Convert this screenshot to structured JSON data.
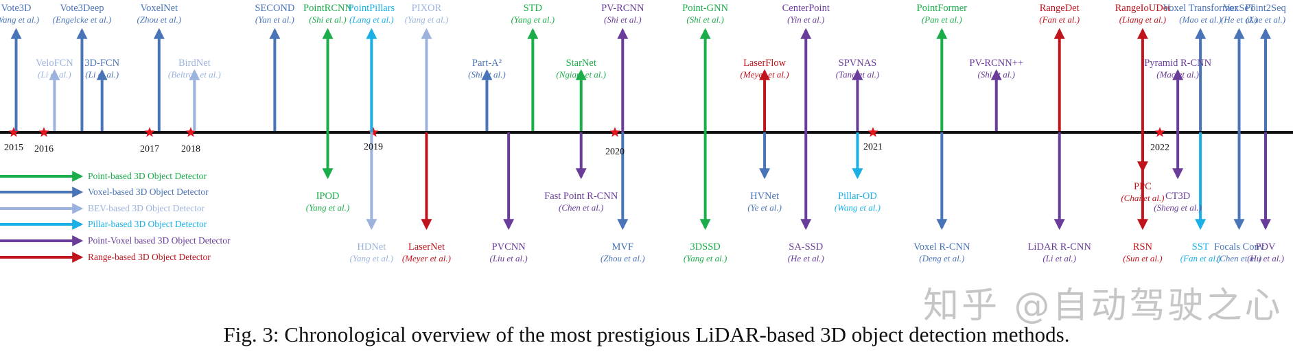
{
  "colors": {
    "point": "#1bad4a",
    "voxel": "#4a74b8",
    "bev": "#9cb4dd",
    "pillar": "#1ab0e6",
    "pointvoxel": "#6a3d9a",
    "range": "#c0151d",
    "axis": "#111111",
    "star": "#e0151d"
  },
  "caption": "Fig. 3: Chronological overview of the most prestigious LiDAR-based 3D object detection methods.",
  "watermark": "知乎 @自动驾驶之心",
  "years": [
    {
      "label": "2015",
      "t": 2015.0
    },
    {
      "label": "2016",
      "t": 2016.0
    },
    {
      "label": "2017",
      "t": 2017.0
    },
    {
      "label": "2018",
      "t": 2018.0
    },
    {
      "label": "2019",
      "t": 2019.0
    },
    {
      "label": "2020",
      "t": 2020.0
    },
    {
      "label": "2021",
      "t": 2021.0
    },
    {
      "label": "2022",
      "t": 2022.0
    }
  ],
  "legend": [
    {
      "type": "point",
      "label": "Point-based 3D Object Detector"
    },
    {
      "type": "voxel",
      "label": "Voxel-based 3D Object Detector"
    },
    {
      "type": "bev",
      "label": "BEV-based 3D Object Detector"
    },
    {
      "type": "pillar",
      "label": "Pillar-based 3D Object Detector"
    },
    {
      "type": "pointvoxel",
      "label": "Point-Voxel based 3D Object Detector"
    },
    {
      "type": "range",
      "label": "Range-based 3D Object Detector"
    }
  ],
  "methods": [
    {
      "name": "Vote3D",
      "authors": "(Wang et al.)",
      "type": "voxel",
      "t": 2015.08,
      "dir": "up",
      "tier": "high"
    },
    {
      "name": "VeloFCN",
      "authors": "(Li et al.)",
      "type": "bev",
      "t": 2016.1,
      "dir": "up",
      "tier": "low"
    },
    {
      "name": "Vote3Deep",
      "authors": "(Engelcke et al.)",
      "type": "voxel",
      "t": 2016.36,
      "dir": "up",
      "tier": "high"
    },
    {
      "name": "3D-FCN",
      "authors": "(Li et al.)",
      "type": "voxel",
      "t": 2016.55,
      "dir": "up",
      "tier": "low"
    },
    {
      "name": "VoxelNet",
      "authors": "(Zhou et al.)",
      "type": "voxel",
      "t": 2017.23,
      "dir": "up",
      "tier": "high"
    },
    {
      "name": "BirdNet",
      "authors": "(Beltran et al.)",
      "type": "bev",
      "t": 2018.02,
      "dir": "up",
      "tier": "low"
    },
    {
      "name": "SECOND",
      "authors": "(Yan et al.)",
      "type": "voxel",
      "t": 2018.46,
      "dir": "up",
      "tier": "high"
    },
    {
      "name": "PointRCNN",
      "authors": "(Shi et al.)",
      "type": "point",
      "t": 2018.75,
      "dir": "both",
      "tier": "high"
    },
    {
      "name": "IPOD",
      "authors": "(Yang et al.)",
      "type": "point",
      "t": 2018.75,
      "dir": "down",
      "tier": "high"
    },
    {
      "name": "PointPillars",
      "authors": "(Lang et al.)",
      "type": "pillar",
      "t": 2018.99,
      "dir": "both",
      "tier": "high"
    },
    {
      "name": "HDNet",
      "authors": "(Yang et al.)",
      "type": "bev",
      "t": 2018.99,
      "dir": "down",
      "tier": "low"
    },
    {
      "name": "PIXOR",
      "authors": "(Yang et al.)",
      "type": "bev",
      "t": 2019.22,
      "dir": "up",
      "tier": "high"
    },
    {
      "name": "LaserNet",
      "authors": "(Meyer et al.)",
      "type": "range",
      "t": 2019.22,
      "dir": "down",
      "tier": "low"
    },
    {
      "name": "Part-A²",
      "authors": "(Shi et al.)",
      "type": "voxel",
      "t": 2019.47,
      "dir": "up",
      "tier": "low"
    },
    {
      "name": "PVCNN",
      "authors": "(Liu et al.)",
      "type": "pointvoxel",
      "t": 2019.56,
      "dir": "down",
      "tier": "low"
    },
    {
      "name": "STD",
      "authors": "(Yang et al.)",
      "type": "point",
      "t": 2019.66,
      "dir": "up",
      "tier": "high"
    },
    {
      "name": "StarNet",
      "authors": "(Ngiam et al.)",
      "type": "point",
      "t": 2019.86,
      "dir": "up",
      "tier": "low"
    },
    {
      "name": "Fast Point R-CNN",
      "authors": "(Chen et al.)",
      "type": "pointvoxel",
      "t": 2019.86,
      "dir": "down",
      "tier": "high"
    },
    {
      "name": "PV-RCNN",
      "authors": "(Shi et al.)",
      "type": "pointvoxel",
      "t": 2020.03,
      "dir": "both",
      "tier": "high"
    },
    {
      "name": "MVF",
      "authors": "(Zhou et al.)",
      "type": "voxel",
      "t": 2020.03,
      "dir": "down",
      "tier": "low"
    },
    {
      "name": "Point-GNN",
      "authors": "(Shi et al.)",
      "type": "point",
      "t": 2020.35,
      "dir": "both",
      "tier": "high"
    },
    {
      "name": "3DSSD",
      "authors": "(Yang et al.)",
      "type": "point",
      "t": 2020.35,
      "dir": "down",
      "tier": "low"
    },
    {
      "name": "LaserFlow",
      "authors": "(Meyer et al.)",
      "type": "range",
      "t": 2020.58,
      "dir": "up",
      "tier": "low"
    },
    {
      "name": "HVNet",
      "authors": "(Ye et al.)",
      "type": "voxel",
      "t": 2020.58,
      "dir": "down",
      "tier": "high"
    },
    {
      "name": "CenterPoint",
      "authors": "(Yin et al.)",
      "type": "pointvoxel",
      "t": 2020.74,
      "dir": "both",
      "tier": "high"
    },
    {
      "name": "SA-SSD",
      "authors": "(He et al.)",
      "type": "pointvoxel",
      "t": 2020.74,
      "dir": "down",
      "tier": "low"
    },
    {
      "name": "SPVNAS",
      "authors": "(Tang et al.)",
      "type": "pointvoxel",
      "t": 2020.94,
      "dir": "up",
      "tier": "low"
    },
    {
      "name": "Pillar-OD",
      "authors": "(Wang et al.)",
      "type": "pillar",
      "t": 2020.94,
      "dir": "down",
      "tier": "high"
    },
    {
      "name": "PointFormer",
      "authors": "(Pan et al.)",
      "type": "point",
      "t": 2021.24,
      "dir": "up",
      "tier": "high"
    },
    {
      "name": "Voxel R-CNN",
      "authors": "(Deng et al.)",
      "type": "voxel",
      "t": 2021.24,
      "dir": "down",
      "tier": "low"
    },
    {
      "name": "PV-RCNN++",
      "authors": "(Shi et al.)",
      "type": "pointvoxel",
      "t": 2021.43,
      "dir": "up",
      "tier": "low"
    },
    {
      "name": "RangeDet",
      "authors": "(Fan et al.)",
      "type": "range",
      "t": 2021.65,
      "dir": "up",
      "tier": "high"
    },
    {
      "name": "LiDAR R-CNN",
      "authors": "(Li et al.)",
      "type": "pointvoxel",
      "t": 2021.65,
      "dir": "down",
      "tier": "low"
    },
    {
      "name": "RangeIoUDet",
      "authors": "(Liang et al.)",
      "type": "range",
      "t": 2021.94,
      "dir": "both",
      "tier": "high"
    },
    {
      "name": "PPC",
      "authors": "(Chai et al.)",
      "type": "range",
      "t": 2021.94,
      "dir": "down",
      "tier": "high"
    },
    {
      "name": "RSN",
      "authors": "(Sun et al.)",
      "type": "range",
      "t": 2021.94,
      "dir": "down",
      "tier": "low"
    },
    {
      "name": "Pyramid R-CNN",
      "authors": "(Mao et al.)",
      "type": "pointvoxel",
      "t": 2022.19,
      "dir": "both",
      "tier": "low"
    },
    {
      "name": "CT3D",
      "authors": "(Sheng et al.)",
      "type": "pointvoxel",
      "t": 2022.19,
      "dir": "down",
      "tier": "high"
    },
    {
      "name": "Voxel Transformer",
      "authors": "(Mao et al.)",
      "type": "voxel",
      "t": 2022.43,
      "dir": "up",
      "tier": "high"
    },
    {
      "name": "SST",
      "authors": "(Fan et al.)",
      "type": "pillar",
      "t": 2022.43,
      "dir": "down",
      "tier": "low"
    },
    {
      "name": "VoxSeT",
      "authors": "(He et al.)",
      "type": "voxel",
      "t": 2022.84,
      "dir": "both",
      "tier": "high"
    },
    {
      "name": "Focals Conv",
      "authors": "(Chen et al.)",
      "type": "voxel",
      "t": 2022.84,
      "dir": "down",
      "tier": "low"
    },
    {
      "name": "Point2Seq",
      "authors": "(Xue et al.)",
      "type": "voxel",
      "t": 2023.12,
      "dir": "up",
      "tier": "high"
    },
    {
      "name": "PDV",
      "authors": "(Hu et al.)",
      "type": "pointvoxel",
      "t": 2023.12,
      "dir": "down",
      "tier": "low"
    }
  ]
}
